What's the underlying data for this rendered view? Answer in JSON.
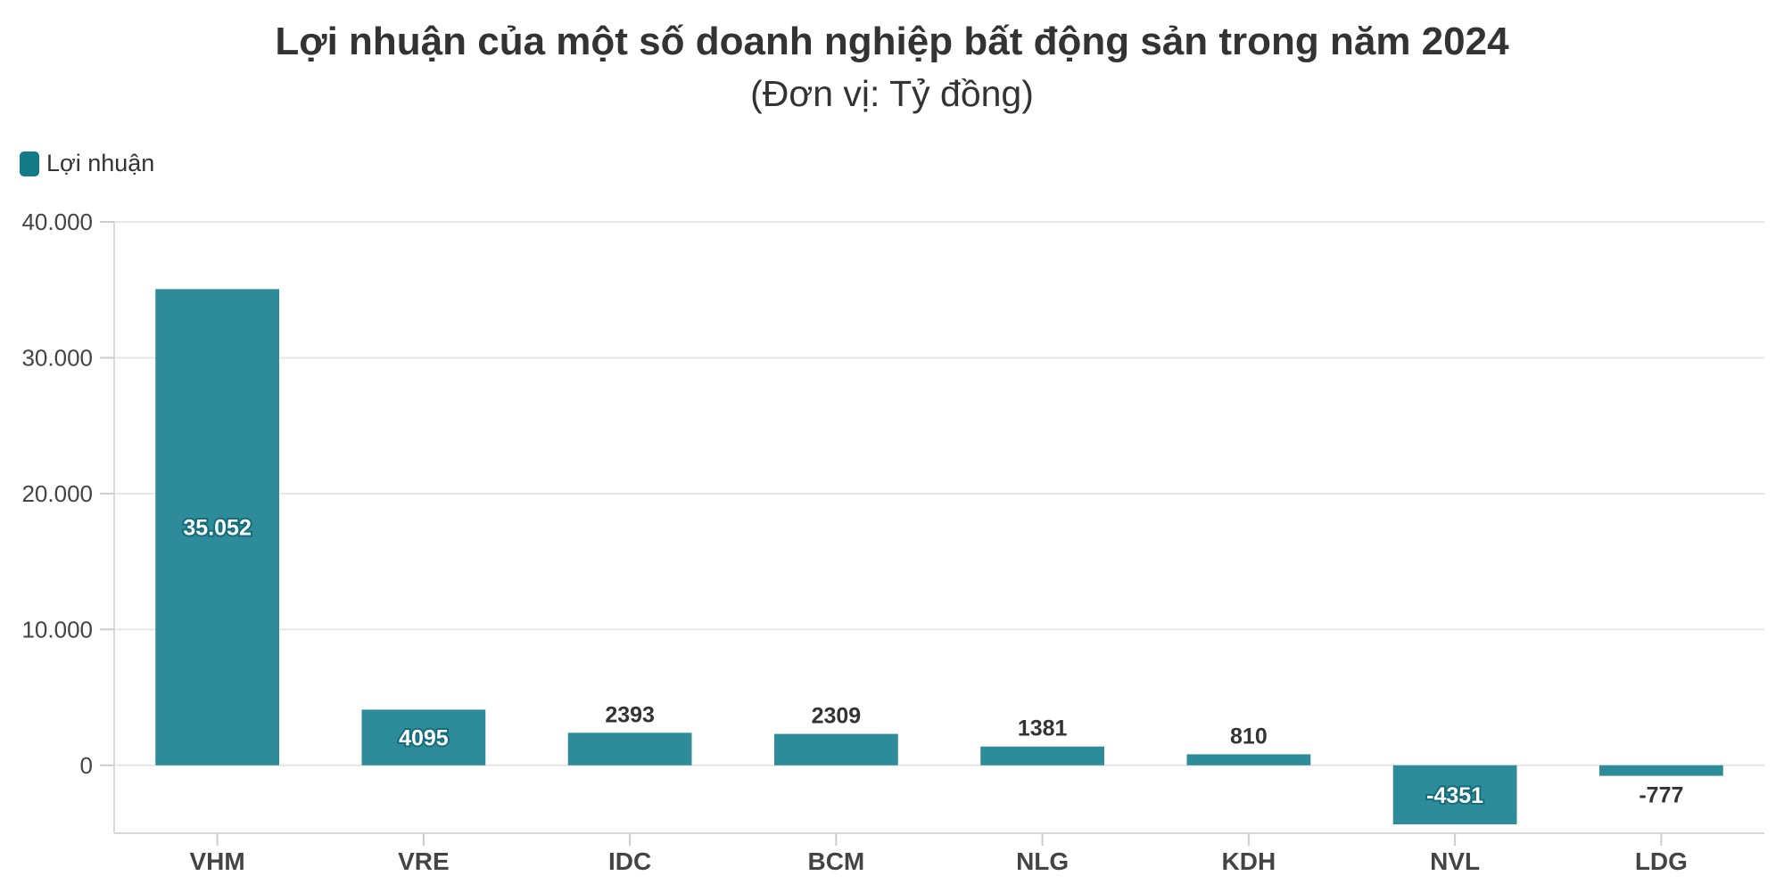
{
  "chart_data": {
    "type": "bar",
    "title": "Lợi nhuận của một số doanh nghiệp bất động sản trong năm 2024",
    "subtitle": "(Đơn vị: Tỷ đồng)",
    "categories": [
      "VHM",
      "VRE",
      "IDC",
      "BCM",
      "NLG",
      "KDH",
      "NVL",
      "LDG"
    ],
    "series": [
      {
        "name": "Lợi nhuận",
        "values": [
          35052,
          4095,
          2393,
          2309,
          1381,
          810,
          -4351,
          -777
        ],
        "labels": [
          "35.052",
          "4095",
          "2393",
          "2309",
          "1381",
          "810",
          "-4351",
          "-777"
        ],
        "color": "#2e8b99"
      }
    ],
    "ylim": [
      -5000,
      40000
    ],
    "yticks": [
      0,
      10000,
      20000,
      30000,
      40000
    ],
    "ytick_labels": [
      "0",
      "10.000",
      "20.000",
      "30.000",
      "40.000"
    ],
    "grid": true,
    "legend_position": "top-left",
    "legend_color": "#137a87"
  }
}
